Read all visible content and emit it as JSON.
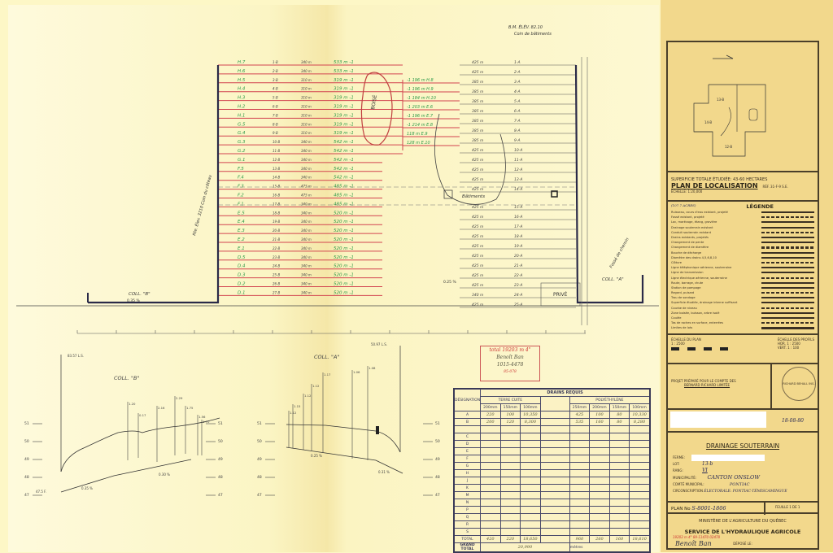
{
  "header_note": {
    "line1": "B.M.   ÉLÉV. 82.10",
    "line2": "Coin de bâtiments"
  },
  "plan": {
    "laterals_b": [
      {
        "id": "H.7",
        "no": "1-B",
        "len": "340 m",
        "total": "533 m -1"
      },
      {
        "id": "H.6",
        "no": "2-B",
        "len": "340 m",
        "total": "533 m -1"
      },
      {
        "id": "H.5",
        "no": "3-B",
        "len": "310 m",
        "total": "319 m -1"
      },
      {
        "id": "H.4",
        "no": "4-B",
        "len": "310 m",
        "total": "319 m -1"
      },
      {
        "id": "H.3",
        "no": "5-B",
        "len": "310 m",
        "total": "319 m -1"
      },
      {
        "id": "H.2",
        "no": "6-B",
        "len": "310 m",
        "total": "319 m -1"
      },
      {
        "id": "H.1",
        "no": "7-B",
        "len": "310 m",
        "total": "319 m -1"
      },
      {
        "id": "G.5",
        "no": "8-B",
        "len": "310 m",
        "total": "319 m -1"
      },
      {
        "id": "G.4",
        "no": "9-B",
        "len": "310 m",
        "total": "319 m -1"
      },
      {
        "id": "G.3",
        "no": "10-B",
        "len": "340 m",
        "total": "542 m -1"
      },
      {
        "id": "G.2",
        "no": "11-B",
        "len": "340 m",
        "total": "542 m -1"
      },
      {
        "id": "G.1",
        "no": "12-B",
        "len": "340 m",
        "total": "542 m -1"
      },
      {
        "id": "F.5",
        "no": "13-B",
        "len": "340 m",
        "total": "542 m -1"
      },
      {
        "id": "F.4",
        "no": "14-B",
        "len": "340 m",
        "total": "542 m -1"
      },
      {
        "id": "F.3",
        "no": "15-B",
        "len": "475 m",
        "total": "485 m -1"
      },
      {
        "id": "F.2",
        "no": "16-B",
        "len": "475 m",
        "total": "485 m -1"
      },
      {
        "id": "F.1",
        "no": "17-B",
        "len": "340 m",
        "total": "485 m -1"
      },
      {
        "id": "E.5",
        "no": "18-B",
        "len": "340 m",
        "total": "520 m -1"
      },
      {
        "id": "E.4",
        "no": "19-B",
        "len": "340 m",
        "total": "520 m -1"
      },
      {
        "id": "E.3",
        "no": "20-B",
        "len": "340 m",
        "total": "520 m -1"
      },
      {
        "id": "E.2",
        "no": "21-B",
        "len": "340 m",
        "total": "520 m -1"
      },
      {
        "id": "E.1",
        "no": "22-B",
        "len": "340 m",
        "total": "520 m -1"
      },
      {
        "id": "D.5",
        "no": "23-B",
        "len": "340 m",
        "total": "520 m -1"
      },
      {
        "id": "D.4",
        "no": "24-B",
        "len": "340 m",
        "total": "520 m -1"
      },
      {
        "id": "D.3",
        "no": "25-B",
        "len": "340 m",
        "total": "520 m -1"
      },
      {
        "id": "D.2",
        "no": "26-B",
        "len": "340 m",
        "total": "520 m -1"
      },
      {
        "id": "D.1",
        "no": "27-B",
        "len": "340 m",
        "total": "520 m -1"
      }
    ],
    "laterals_mid": [
      {
        "label": "-1 196 m  H.8"
      },
      {
        "label": "-1 196 m  H.9"
      },
      {
        "label": "-1 184 m  H.10"
      },
      {
        "label": "-1 203 m  E.6"
      },
      {
        "label": "-1 196 m  E.7"
      },
      {
        "label": "-1 214 m  E.8"
      },
      {
        "label": "118 m  E.9"
      },
      {
        "label": "128 m  E.10"
      }
    ],
    "laterals_a": [
      {
        "len": "425 m",
        "no": "1-A"
      },
      {
        "len": "425 m",
        "no": "2-A"
      },
      {
        "len": "385 m",
        "no": "3-A"
      },
      {
        "len": "385 m",
        "no": "4-A"
      },
      {
        "len": "385 m",
        "no": "5-A"
      },
      {
        "len": "385 m",
        "no": "6-A"
      },
      {
        "len": "385 m",
        "no": "7-A"
      },
      {
        "len": "385 m",
        "no": "8-A"
      },
      {
        "len": "385 m",
        "no": "9-A"
      },
      {
        "len": "425 m",
        "no": "10-A"
      },
      {
        "len": "425 m",
        "no": "11-A"
      },
      {
        "len": "425 m",
        "no": "12-A"
      },
      {
        "len": "425 m",
        "no": "13-A"
      },
      {
        "len": "425 m",
        "no": "14-A"
      },
      {
        "len": "425 m",
        "no": "15-A"
      },
      {
        "len": "425 m",
        "no": "16-A"
      },
      {
        "len": "425 m",
        "no": "17-A"
      },
      {
        "len": "425 m",
        "no": "18-A"
      },
      {
        "len": "425 m",
        "no": "19-A"
      },
      {
        "len": "425 m",
        "no": "20-A"
      },
      {
        "len": "425 m",
        "no": "21-A"
      },
      {
        "len": "425 m",
        "no": "22-A"
      },
      {
        "len": "425 m",
        "no": "23-A"
      },
      {
        "len": "340 m",
        "no": "24-A"
      },
      {
        "len": "425 m",
        "no": "25-A"
      }
    ],
    "labels": {
      "boise": "BOISÉ",
      "batiments": "Bâtiments",
      "prive": "PRIVÉ",
      "coll_b": "COLL. \"B\"",
      "coll_a": "COLL. \"A\"",
      "slope_b": "0.35 %",
      "slope_a": "0.25 %",
      "ditch_left": "Rte. Élev. 3210 Coin du côteau",
      "ditch_right": "Fossé de chemin"
    }
  },
  "profiles": {
    "b": {
      "title": "COLL. \"B\"",
      "top": "83.57 L.S.",
      "slopes": [
        "0.35 %",
        "0.30 %"
      ],
      "outlet": "47.5 F.",
      "elev": [
        "51",
        "50",
        "49",
        "48",
        "47"
      ],
      "depths": [
        "1.20",
        "0.17",
        "2.16",
        "2.29",
        "1.75",
        "1.56",
        "1.70"
      ]
    },
    "a": {
      "title": "COLL. \"A\"",
      "top": "50.97 L.S.",
      "slopes": [
        "0.25 %",
        "0.31 %"
      ],
      "elev": [
        "51",
        "50",
        "49",
        "48",
        "47"
      ],
      "depths": [
        "1.12",
        "1.15",
        "1.12",
        "1.12",
        "1.17",
        "1.06",
        "1.08"
      ]
    }
  },
  "stamp": {
    "line1": "total 19203 m  4\"",
    "line2": "Benoît Ban",
    "line3": "1015-4478",
    "line4": "85-078"
  },
  "drains_table": {
    "title": "DRAINS REQUIS",
    "designation": "DÉSIGNATION",
    "terre_cuite": "TERRE CUITE",
    "polyethylene": "POLYÉTHYLÈNE",
    "tc_sizes": [
      "200mm",
      "150mm",
      "100mm"
    ],
    "pe_sizes": [
      "250mm",
      "200mm",
      "150mm",
      "100mm"
    ],
    "rows": [
      {
        "d": "A",
        "tc": [
          "220",
          "100",
          "10,350"
        ],
        "pe": [
          "425",
          "100",
          "80",
          "10,330"
        ]
      },
      {
        "d": "B",
        "tc": [
          "200",
          "120",
          "8,300"
        ],
        "pe": [
          "535",
          "160",
          "80",
          "8,280"
        ]
      },
      {
        "d": "",
        "tc": [
          "",
          "",
          ""
        ],
        "pe": [
          "",
          "",
          "",
          ""
        ]
      },
      {
        "d": "C",
        "tc": [
          "",
          "",
          ""
        ],
        "pe": [
          "",
          "",
          "",
          ""
        ]
      },
      {
        "d": "D",
        "tc": [
          "",
          "",
          ""
        ],
        "pe": [
          "",
          "",
          "",
          ""
        ]
      },
      {
        "d": "E",
        "tc": [
          "",
          "",
          ""
        ],
        "pe": [
          "",
          "",
          "",
          ""
        ]
      },
      {
        "d": "F",
        "tc": [
          "",
          "",
          ""
        ],
        "pe": [
          "",
          "",
          "",
          ""
        ]
      },
      {
        "d": "G",
        "tc": [
          "",
          "",
          ""
        ],
        "pe": [
          "",
          "",
          "",
          ""
        ]
      },
      {
        "d": "H",
        "tc": [
          "",
          "",
          ""
        ],
        "pe": [
          "",
          "",
          "",
          ""
        ]
      },
      {
        "d": "J",
        "tc": [
          "",
          "",
          ""
        ],
        "pe": [
          "",
          "",
          "",
          ""
        ]
      },
      {
        "d": "K",
        "tc": [
          "",
          "",
          ""
        ],
        "pe": [
          "",
          "",
          "",
          ""
        ]
      },
      {
        "d": "M",
        "tc": [
          "",
          "",
          ""
        ],
        "pe": [
          "",
          "",
          "",
          ""
        ]
      },
      {
        "d": "N",
        "tc": [
          "",
          "",
          ""
        ],
        "pe": [
          "",
          "",
          "",
          ""
        ]
      },
      {
        "d": "P",
        "tc": [
          "",
          "",
          ""
        ],
        "pe": [
          "",
          "",
          "",
          ""
        ]
      },
      {
        "d": "Q",
        "tc": [
          "",
          "",
          ""
        ],
        "pe": [
          "",
          "",
          "",
          ""
        ]
      },
      {
        "d": "R",
        "tc": [
          "",
          "",
          ""
        ],
        "pe": [
          "",
          "",
          "",
          ""
        ]
      },
      {
        "d": "S",
        "tc": [
          "",
          "",
          ""
        ],
        "pe": [
          "",
          "",
          "",
          ""
        ]
      }
    ],
    "total_label": "TOTAL",
    "total": {
      "tc": [
        "420",
        "220",
        "18,650"
      ],
      "pe": [
        "960",
        "260",
        "160",
        "18,610"
      ]
    },
    "grand_total_label": "GRAND TOTAL",
    "grand_total": "20,990",
    "unit": "mètres"
  },
  "title_block": {
    "superficie": "SUPERFICIE TOTALE ÉTUDIÉE: 43-60 HECTARES",
    "plan_localisation": "PLAN DE LOCALISATION",
    "ref": "RÉF. 31-F-9  S.E.",
    "echelle_loc": "ÉCHELLE: 1:20,000",
    "acres_note": "(107.7 ACRES)",
    "legende_title": "LÉGENDE",
    "legend": [
      "Ruisseau, cours d'eau existant, projeté",
      "Fossé existant, projeté",
      "Lac, marécage, étang, gravière",
      "Drainage souterrain existant",
      "Conduit souterrain existant",
      "Drains existants, projetés",
      "Changement de pente",
      "Changement de diamètre",
      "Bouche de décharge",
      "Diamètre des drains 4,5,6,8,10",
      "Clôture",
      "Ligne téléphonique aérienne, souterraine",
      "Ligne de transmission",
      "Ligne électrique aérienne, souterraine",
      "Route, barrage, chute",
      "Station de pompage",
      "Regard, puisard",
      "Trou de sondage",
      "Superficie étudiée, drainage interne suffisant",
      "Courbe de niveau",
      "Zone boisée, buisson, arbre isolé",
      "Coulée",
      "Tas de roches en surface, enterrées",
      "Limites de lots"
    ],
    "echelle_plan": "ÉCHELLE DU PLAN",
    "echelle_profils": "ÉCHELLE DES PROFILS",
    "echelle_plan_ratio": "1 : 2500",
    "profils_h": "HOR. 1 : 2500",
    "profils_v": "VERT. 1 : 100",
    "projet": "PROJET PRÉPARÉ POUR LE COMPTE DES",
    "projet_name": "BERNARD RICHARD LIMITÉE",
    "seal_text": "RICHARD BEHALL ING.",
    "date": "18-08-80",
    "drainage_title": "DRAINAGE SOUTERRAIN",
    "ferme_label": "FERME:",
    "lot_label": "LOT:",
    "lot_value": "13-b",
    "rang_label": "RANG:",
    "rang_value": "VI",
    "municipalite_label": "MUNICIPALITÉ:",
    "municipalite_value": "CANTON ONSLOW",
    "comte_label": "COMTÉ MUNICIPAL:",
    "comte_value": "PONTIAC",
    "circ_label": "CIRCONSCRIPTION",
    "circ_value": "ÉLECTORALE: PONTIAC-TÉMISCAMINGUE",
    "plan_no_label": "PLAN No",
    "plan_no": "S-8001-1806",
    "feuille": "FEUILLE 1 DE 1",
    "ministere": "MINISTÈRE DE L'AGRICULTURE DU QUÉBEC",
    "service": "SERVICE DE L'HYDRAULIQUE AGRICOLE",
    "red_note": "19203 m 4\"   89-11470 02478",
    "depose": "DÉPOSÉ LE:",
    "signature": "Benoît Ban"
  },
  "colors": {
    "paper": "#fdf7c6",
    "title_block": "#f2d88c",
    "drain_red": "#d2434f",
    "label_green": "#2f9a4a",
    "ink": "#3a3a58"
  }
}
